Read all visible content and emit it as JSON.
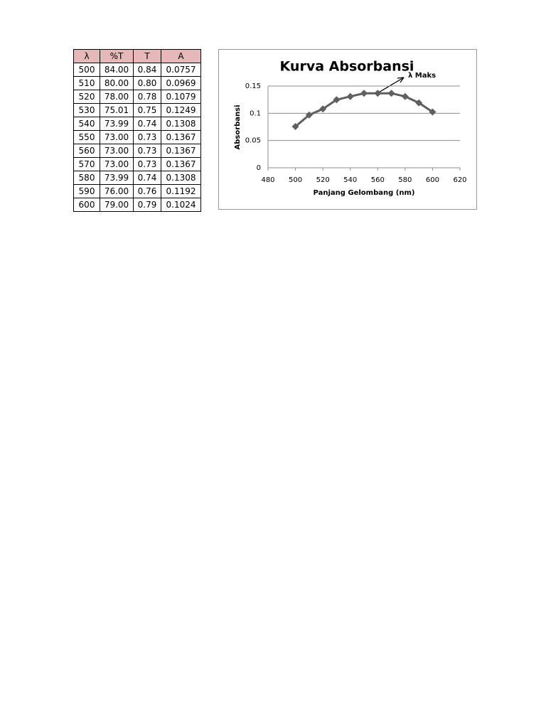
{
  "table": {
    "header": [
      "λ",
      "%T",
      "T",
      "A"
    ],
    "rows": [
      [
        "500",
        "84.00",
        "0.84",
        "0.0757"
      ],
      [
        "510",
        "80.00",
        "0.80",
        "0.0969"
      ],
      [
        "520",
        "78.00",
        "0.78",
        "0.1079"
      ],
      [
        "530",
        "75.01",
        "0.75",
        "0.1249"
      ],
      [
        "540",
        "73.99",
        "0.74",
        "0.1308"
      ],
      [
        "550",
        "73.00",
        "0.73",
        "0.1367"
      ],
      [
        "560",
        "73.00",
        "0.73",
        "0.1367"
      ],
      [
        "570",
        "73.00",
        "0.73",
        "0.1367"
      ],
      [
        "580",
        "73.99",
        "0.74",
        "0.1308"
      ],
      [
        "590",
        "76.00",
        "0.76",
        "0.1192"
      ],
      [
        "600",
        "79.00",
        "0.79",
        "0.1024"
      ]
    ]
  },
  "chart_data": {
    "type": "line",
    "title": "Kurva Absorbansi",
    "x_label": "Panjang Gelombang (nm)",
    "y_label": "Absorbansi",
    "annotation": "λ Maks",
    "x": [
      500,
      510,
      520,
      530,
      540,
      550,
      560,
      570,
      580,
      590,
      600
    ],
    "values": [
      0.0757,
      0.0969,
      0.1079,
      0.1249,
      0.1308,
      0.1367,
      0.1367,
      0.1367,
      0.1308,
      0.1192,
      0.1024
    ],
    "color": "#5f5f5f",
    "xlim": [
      480,
      620
    ],
    "xticks": [
      480,
      500,
      520,
      540,
      560,
      580,
      600,
      620
    ],
    "ylim": [
      0,
      0.15
    ],
    "yticks": [
      0,
      0.05,
      0.1,
      0.15
    ],
    "grid": true
  }
}
